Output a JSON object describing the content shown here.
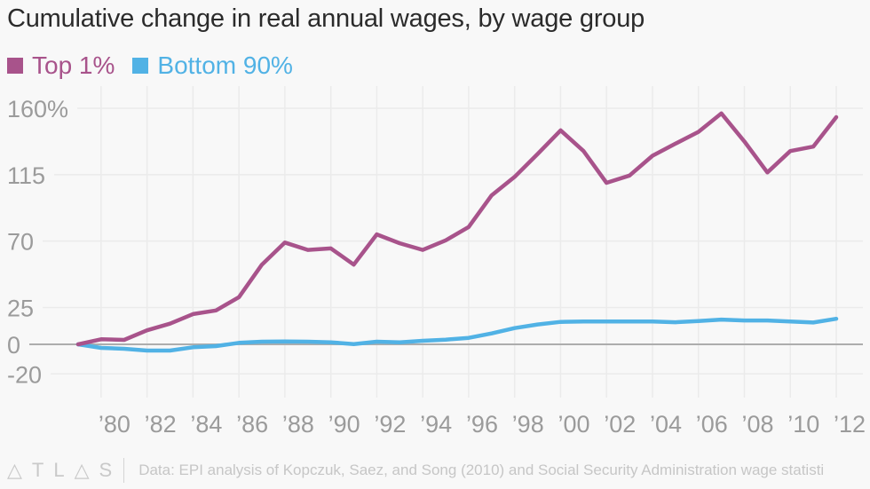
{
  "title": "Cumulative change in real annual wages, by wage group",
  "footer": {
    "logo": "ATLAS",
    "source": "Data: EPI analysis of Kopczuk, Saez, and Song (2010) and Social Security Administration wage statisti"
  },
  "colors": {
    "top1": "#a8538b",
    "bottom90": "#51b2e5",
    "title": "#2b2b2b",
    "axis_text": "#9b9b9b",
    "grid": "#ebebeb",
    "zero_line": "#adadad"
  },
  "chart_data": {
    "type": "line",
    "title": "Cumulative change in real annual wages, by wage group",
    "xlabel": "",
    "ylabel": "",
    "x": [
      1979,
      1980,
      1981,
      1982,
      1983,
      1984,
      1985,
      1986,
      1987,
      1988,
      1989,
      1990,
      1991,
      1992,
      1993,
      1994,
      1995,
      1996,
      1997,
      1998,
      1999,
      2000,
      2001,
      2002,
      2003,
      2004,
      2005,
      2006,
      2007,
      2008,
      2009,
      2010,
      2011,
      2012
    ],
    "series": [
      {
        "name": "Top 1%",
        "color": "#a8538b",
        "values": [
          0,
          3.4,
          3,
          9.5,
          14,
          20.5,
          23,
          32,
          54,
          69,
          64,
          65,
          54,
          74.5,
          68.5,
          64,
          70.5,
          79.5,
          101,
          113.5,
          129,
          145,
          131,
          109.5,
          114.4,
          127.8,
          136,
          144,
          156.5,
          137.5,
          116.5,
          131,
          134,
          154
        ]
      },
      {
        "name": "Bottom 90%",
        "color": "#51b2e5",
        "values": [
          0,
          -2.4,
          -3,
          -4.2,
          -4.2,
          -2,
          -1.2,
          1,
          1.8,
          2,
          1.8,
          1.4,
          0.2,
          1.8,
          1.4,
          2.4,
          3.2,
          4.4,
          7.4,
          11,
          13.5,
          15.2,
          15.5,
          15.5,
          15.5,
          15.5,
          15,
          15.8,
          16.8,
          16.2,
          16.2,
          15.5,
          14.8,
          17.3
        ]
      }
    ],
    "legend": [
      "Top 1%",
      "Bottom 90%"
    ],
    "legend_position": "top-left",
    "yticks": [
      {
        "value": 160,
        "label": "160%"
      },
      {
        "value": 115,
        "label": "115"
      },
      {
        "value": 70,
        "label": "70"
      },
      {
        "value": 25,
        "label": "25"
      },
      {
        "value": 0,
        "label": "0"
      },
      {
        "value": -20,
        "label": "-20"
      }
    ],
    "xticks": [
      {
        "value": 1980,
        "label": "’80"
      },
      {
        "value": 1982,
        "label": "’82"
      },
      {
        "value": 1984,
        "label": "’84"
      },
      {
        "value": 1986,
        "label": "’86"
      },
      {
        "value": 1988,
        "label": "’88"
      },
      {
        "value": 1990,
        "label": "’90"
      },
      {
        "value": 1992,
        "label": "’92"
      },
      {
        "value": 1994,
        "label": "’94"
      },
      {
        "value": 1996,
        "label": "’96"
      },
      {
        "value": 1998,
        "label": "’98"
      },
      {
        "value": 2000,
        "label": "’00"
      },
      {
        "value": 2002,
        "label": "’02"
      },
      {
        "value": 2004,
        "label": "’04"
      },
      {
        "value": 2006,
        "label": "’06"
      },
      {
        "value": 2008,
        "label": "’08"
      },
      {
        "value": 2010,
        "label": "’10"
      },
      {
        "value": 2012,
        "label": "’12"
      }
    ],
    "xlim": [
      1979,
      2012
    ],
    "ylim": [
      -20,
      160
    ],
    "grid": true
  }
}
